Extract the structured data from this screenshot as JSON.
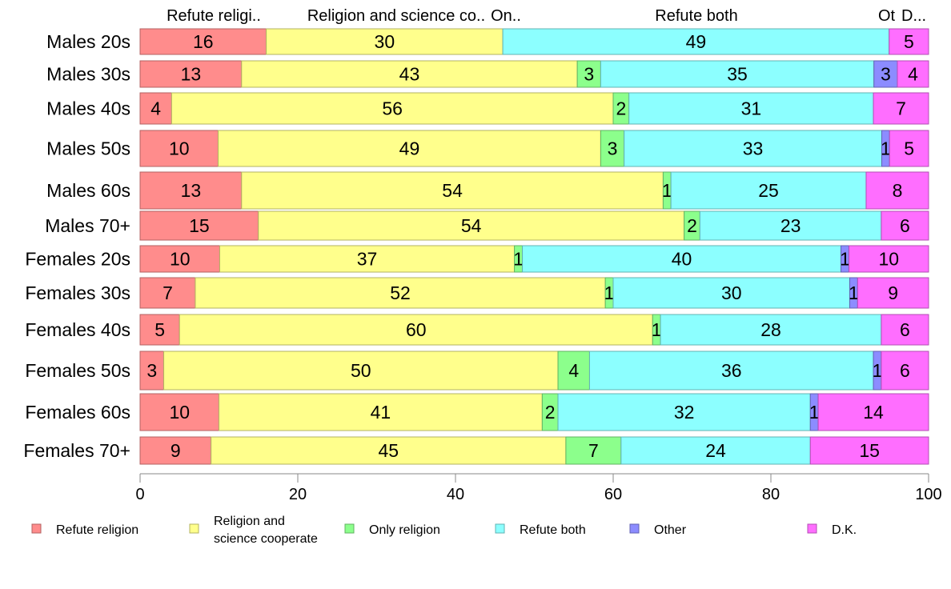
{
  "chart_data": {
    "type": "bar",
    "orientation": "horizontal",
    "stacked": true,
    "title": "",
    "xlabel": "",
    "ylabel": "",
    "xlim": [
      0,
      100
    ],
    "x_ticks": [
      0,
      20,
      40,
      60,
      80,
      100
    ],
    "grid": false,
    "legend_position": "bottom",
    "categories": [
      "Males 20s",
      "Males 30s",
      "Males 40s",
      "Males 50s",
      "Males 60s",
      "Males 70+",
      "Females 20s",
      "Females 30s",
      "Females 40s",
      "Females 50s",
      "Females 60s",
      "Females 70+"
    ],
    "top_labels": [
      "Refute religi..",
      "Religion and science co..",
      "On..",
      "Refute both",
      "Ot",
      "D..."
    ],
    "series": [
      {
        "name": "Refute religion",
        "legend_lines": [
          "Refute religion"
        ],
        "color": "#FF8C8C",
        "values": [
          16,
          13,
          4,
          10,
          13,
          15,
          10,
          7,
          5,
          3,
          10,
          9
        ]
      },
      {
        "name": "Religion and science cooperate",
        "legend_lines": [
          "Religion and",
          "science cooperate"
        ],
        "color": "#FFFF8C",
        "values": [
          30,
          43,
          56,
          49,
          54,
          54,
          37,
          52,
          60,
          50,
          41,
          45
        ]
      },
      {
        "name": "Only religion",
        "legend_lines": [
          "Only religion"
        ],
        "color": "#8CFF8C",
        "values": [
          0,
          3,
          2,
          3,
          1,
          2,
          1,
          1,
          1,
          4,
          2,
          7
        ]
      },
      {
        "name": "Refute both",
        "legend_lines": [
          "Refute both"
        ],
        "color": "#8CFFFF",
        "values": [
          49,
          35,
          31,
          33,
          25,
          23,
          40,
          30,
          28,
          36,
          32,
          24
        ]
      },
      {
        "name": "Other",
        "legend_lines": [
          "Other"
        ],
        "color": "#8C8CFF",
        "values": [
          0,
          3,
          0,
          1,
          0,
          0,
          1,
          1,
          0,
          1,
          1,
          0
        ]
      },
      {
        "name": "D.K.",
        "legend_lines": [
          "D.K."
        ],
        "color": "#FF6EFF",
        "values": [
          5,
          4,
          7,
          5,
          8,
          6,
          10,
          9,
          6,
          6,
          14,
          15
        ]
      }
    ]
  }
}
